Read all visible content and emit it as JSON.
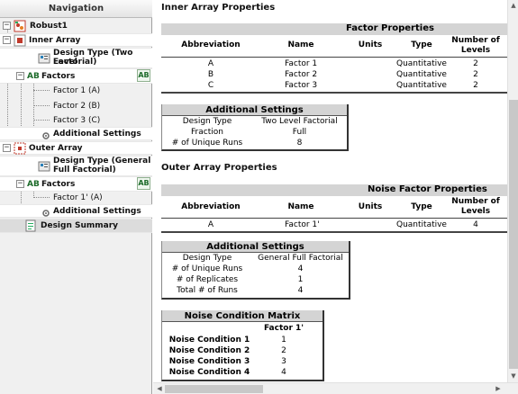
{
  "navigation": {
    "header": "Navigation",
    "root": "Robust1",
    "inner": {
      "label": "Inner Array",
      "design_type_line1": "Design Type (Two Level",
      "design_type_line2": "Factorial)",
      "factors": "Factors",
      "factor_items": [
        "Factor 1 (A)",
        "Factor 2 (B)",
        "Factor 3 (C)"
      ],
      "additional": "Additional Settings"
    },
    "outer": {
      "label": "Outer Array",
      "design_type_line1": "Design Type (General",
      "design_type_line2": "Full Factorial)",
      "factors": "Factors",
      "factor_items": [
        "Factor 1' (A)"
      ],
      "additional": "Additional Settings"
    },
    "summary": "Design Summary",
    "ab_label": "AB"
  },
  "inner_array": {
    "title": "Inner Array Properties",
    "factor_table": {
      "band": "Factor Properties",
      "headers": [
        "Abbreviation",
        "Name",
        "Units",
        "Type",
        "Number of",
        "Levels"
      ],
      "rows": [
        [
          "A",
          "Factor 1",
          "",
          "Quantitative",
          "2"
        ],
        [
          "B",
          "Factor 2",
          "",
          "Quantitative",
          "2"
        ],
        [
          "C",
          "Factor 3",
          "",
          "Quantitative",
          "2"
        ]
      ]
    },
    "settings": {
      "title": "Additional Settings",
      "rows": [
        [
          "Design Type",
          "Two Level Factorial"
        ],
        [
          "Fraction",
          "Full"
        ],
        [
          "# of Unique Runs",
          "8"
        ]
      ]
    }
  },
  "outer_array": {
    "title": "Outer Array Properties",
    "noise_table": {
      "band": "Noise Factor Properties",
      "headers": [
        "Abbreviation",
        "Name",
        "Units",
        "Type",
        "Number of",
        "Levels"
      ],
      "rows": [
        [
          "A",
          "Factor 1'",
          "",
          "Quantitative",
          "4"
        ]
      ]
    },
    "settings": {
      "title": "Additional Settings",
      "rows": [
        [
          "Design Type",
          "General Full Factorial"
        ],
        [
          "# of Unique Runs",
          "4"
        ],
        [
          "# of Replicates",
          "1"
        ],
        [
          "Total # of Runs",
          "4"
        ]
      ]
    },
    "noise_matrix": {
      "title": "Noise Condition Matrix",
      "column": "Factor 1'",
      "rows": [
        [
          "Noise Condition 1",
          "1"
        ],
        [
          "Noise Condition 2",
          "2"
        ],
        [
          "Noise Condition 3",
          "3"
        ],
        [
          "Noise Condition 4",
          "4"
        ]
      ]
    }
  },
  "colors": {
    "band_gray": "#d4d4d4",
    "nav_bg": "#f0f0f0"
  }
}
